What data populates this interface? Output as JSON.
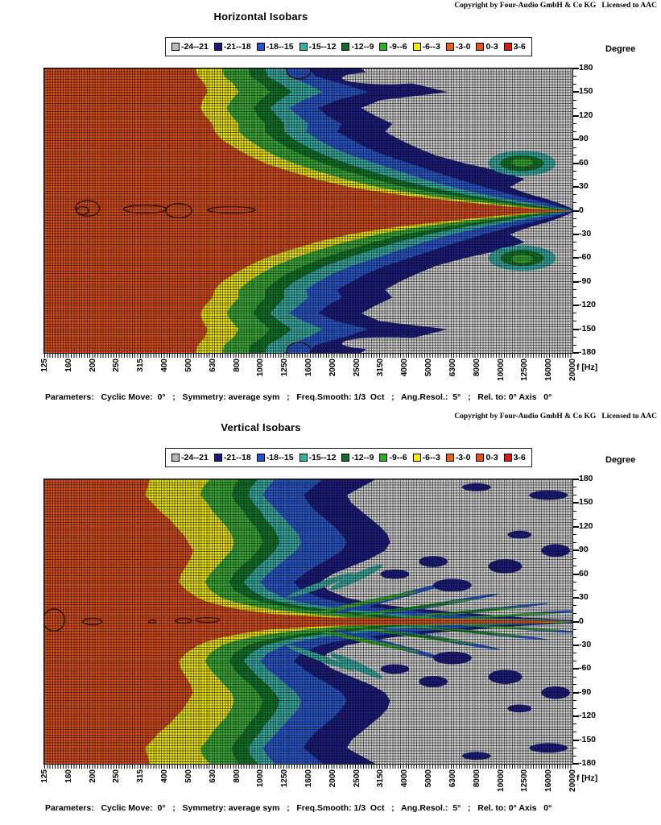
{
  "page_bg": "#ffffff",
  "charts": [
    {
      "copyright": "Copyright by Four-Audio GmbH & Co KG   Licensed to AAC",
      "title": "Horizontal Isobars",
      "degree_label": "Degree",
      "freq_label": "f [Hz]",
      "parameters": "Parameters:   Cyclic Move:  0°   ;   Symmetry: average sym   ;   Freq.Smooth: 1/3  Oct   ;   Ang.Resol.:  5°   ;   Rel. to: 0° Axis   0°"
    },
    {
      "copyright": "Copyright by Four-Audio GmbH & Co KG   Licensed to AAC",
      "title": "Vertical Isobars",
      "degree_label": "Degree",
      "freq_label": "f [Hz]",
      "parameters": "Parameters:   Cyclic Move:  0°   ;   Symmetry: average sym   ;   Freq.Smooth: 1/3  Oct   ;   Ang.Resol.:  5°   ;   Rel. to: 0° Axis   0°"
    }
  ],
  "legend": {
    "entries": [
      {
        "label": "-24--21",
        "color": "#b9b9b9"
      },
      {
        "label": "-21--18",
        "color": "#1a1a78"
      },
      {
        "label": "-18--15",
        "color": "#2255cc"
      },
      {
        "label": "-15--12",
        "color": "#32b3a6"
      },
      {
        "label": "-12--9",
        "color": "#0e6e26"
      },
      {
        "label": "-9--6",
        "color": "#2fae2a"
      },
      {
        "label": "-6--3",
        "color": "#f5ef00"
      },
      {
        "label": "-3-0",
        "color": "#e66312"
      },
      {
        "label": "0-3",
        "color": "#e0501a"
      },
      {
        "label": "3-6",
        "color": "#d91c12"
      }
    ]
  },
  "chart_colors": {
    "gray": "#d2d2d2",
    "navy": "#1d1d86",
    "blue": "#2a5ad2",
    "teal": "#38b2a8",
    "dkgreen": "#0f7a2b",
    "green": "#3cb037",
    "yellow": "#f2ea10",
    "red": "#dd4f1b"
  },
  "chart_data": [
    {
      "type": "heatmap",
      "title": "Horizontal Isobars",
      "x_ticks": [
        "125",
        "160",
        "200",
        "250",
        "315",
        "400",
        "500",
        "630",
        "800",
        "1000",
        "1250",
        "1600",
        "2000",
        "2500",
        "3150",
        "4000",
        "5000",
        "6300",
        "8000",
        "10000",
        "12500",
        "16000",
        "20000"
      ],
      "x_unit": "f [Hz]",
      "y_ticks": [
        "180",
        "150",
        "120",
        "90",
        "60",
        "30",
        "0",
        "-30",
        "-60",
        "-90",
        "-120",
        "-150",
        "-180"
      ],
      "y_unit": "Degree",
      "levels_db": [
        "-24--21",
        "-21--18",
        "-18--15",
        "-15--12",
        "-12--9",
        "-9--6",
        "-6--3",
        "-3-0",
        "0-3",
        "3-6"
      ],
      "grid": true,
      "legend_position": "top",
      "background": "gray",
      "angles": [
        180,
        170,
        160,
        150,
        140,
        130,
        120,
        110,
        100,
        90,
        80,
        70,
        60,
        50,
        40,
        30,
        25,
        20,
        15,
        10,
        5,
        2,
        0
      ],
      "bands": [
        {
          "color": "navy",
          "boundary_idx": [
            13.2,
            13.6,
            15.5,
            16.8,
            14.0,
            13.2,
            13.8,
            14.5,
            14.2,
            14.8,
            15.5,
            16.3,
            17.5,
            19.0,
            20.0,
            19.4,
            19.8,
            20.3,
            20.9,
            21.4,
            21.8,
            22,
            22
          ]
        },
        {
          "color": "blue",
          "boundary_idx": [
            11.0,
            11.3,
            12.5,
            13.5,
            12.2,
            11.4,
            11.8,
            12.4,
            12.2,
            12.8,
            13.4,
            14.2,
            15.2,
            16.2,
            17.2,
            18.3,
            18.9,
            19.5,
            20.2,
            20.9,
            21.5,
            21.9,
            22
          ]
        },
        {
          "color": "teal",
          "boundary_idx": [
            10.0,
            10.2,
            11.0,
            11.6,
            10.8,
            10.2,
            10.6,
            11.0,
            10.9,
            11.4,
            12.0,
            12.8,
            13.8,
            14.8,
            15.8,
            17.0,
            17.7,
            18.4,
            19.3,
            20.2,
            21.1,
            21.7,
            22
          ]
        },
        {
          "color": "dkgreen",
          "boundary_idx": [
            9.2,
            9.3,
            9.9,
            10.3,
            9.8,
            9.4,
            9.7,
            10.0,
            10.0,
            10.4,
            11.0,
            11.7,
            12.6,
            13.6,
            14.7,
            16.0,
            16.8,
            17.6,
            18.6,
            19.7,
            20.8,
            21.5,
            22
          ]
        },
        {
          "color": "green",
          "boundary_idx": [
            8.5,
            8.6,
            9.1,
            9.4,
            9.0,
            8.7,
            8.9,
            9.2,
            9.2,
            9.6,
            10.1,
            10.8,
            11.6,
            12.6,
            13.7,
            15.0,
            15.9,
            16.8,
            17.9,
            19.1,
            20.4,
            21.2,
            22
          ]
        },
        {
          "color": "yellow",
          "boundary_idx": [
            7.4,
            7.5,
            7.9,
            8.1,
            7.8,
            7.6,
            7.8,
            8.1,
            8.1,
            8.5,
            9.0,
            9.6,
            10.4,
            11.4,
            12.5,
            13.9,
            14.8,
            15.8,
            17.0,
            18.4,
            19.9,
            20.9,
            22
          ]
        },
        {
          "color": "red",
          "boundary_idx": [
            6.3,
            6.4,
            6.7,
            6.8,
            6.6,
            6.5,
            6.7,
            7.0,
            7.1,
            7.4,
            7.9,
            8.5,
            9.2,
            10.2,
            11.3,
            12.7,
            13.7,
            14.8,
            16.2,
            17.8,
            19.4,
            20.6,
            22
          ]
        }
      ],
      "islands": [
        {
          "color": "gray",
          "cx": 14.3,
          "cy": 168,
          "rx": 1.9,
          "ry": 8,
          "rot": 0,
          "mirror": true
        },
        {
          "color": "gray",
          "cx": 17.4,
          "cy": 96,
          "rx": 0.7,
          "ry": 7,
          "rot": 0,
          "mirror": true
        },
        {
          "color": "teal",
          "cx": 19.9,
          "cy": 60,
          "rx": 1.4,
          "ry": 16,
          "rot": 0,
          "mirror": true
        },
        {
          "color": "dkgreen",
          "cx": 19.9,
          "cy": 60,
          "rx": 0.9,
          "ry": 10,
          "rot": 0,
          "mirror": true
        },
        {
          "color": "green",
          "cx": 19.9,
          "cy": 61,
          "rx": 0.45,
          "ry": 5,
          "rot": 0,
          "mirror": true
        }
      ],
      "outlines": [
        {
          "cx": 1.8,
          "cy": 3,
          "rx": 0.5,
          "ry": 10,
          "mirror": false
        },
        {
          "cx": 1.6,
          "cy": 0,
          "rx": 0.25,
          "ry": 5,
          "mirror": false
        },
        {
          "cx": 4.2,
          "cy": 2,
          "rx": 0.9,
          "ry": 5,
          "mirror": false
        },
        {
          "cx": 5.6,
          "cy": 0,
          "rx": 0.55,
          "ry": 9,
          "mirror": false
        },
        {
          "cx": 7.8,
          "cy": 1,
          "rx": 1.0,
          "ry": 4,
          "mirror": false
        },
        {
          "cx": 10.6,
          "cy": 177,
          "rx": 0.5,
          "ry": 10,
          "mirror": true
        }
      ]
    },
    {
      "type": "heatmap",
      "title": "Vertical Isobars",
      "x_ticks": [
        "125",
        "160",
        "200",
        "250",
        "315",
        "400",
        "500",
        "630",
        "800",
        "1000",
        "1250",
        "1600",
        "2000",
        "2500",
        "3150",
        "4000",
        "5000",
        "6300",
        "8000",
        "10000",
        "12500",
        "16000",
        "20000"
      ],
      "x_unit": "f [Hz]",
      "y_ticks": [
        "180",
        "150",
        "120",
        "90",
        "60",
        "30",
        "0",
        "-30",
        "-60",
        "-90",
        "-120",
        "-150",
        "-180"
      ],
      "y_unit": "Degree",
      "levels_db": [
        "-24--21",
        "-21--18",
        "-18--15",
        "-15--12",
        "-12--9",
        "-9--6",
        "-6--3",
        "-3-0",
        "0-3",
        "3-6"
      ],
      "grid": true,
      "legend_position": "top",
      "background": "gray",
      "angles": [
        180,
        170,
        160,
        150,
        140,
        130,
        120,
        110,
        100,
        90,
        80,
        70,
        60,
        50,
        40,
        30,
        25,
        20,
        15,
        10,
        5,
        2,
        0
      ],
      "bands": [
        {
          "color": "navy",
          "boundary_idx": [
            13.8,
            13.2,
            12.6,
            12.8,
            13.2,
            13.6,
            14.0,
            14.3,
            14.4,
            14.2,
            13.6,
            12.8,
            12.0,
            11.5,
            11.8,
            12.6,
            13.4,
            14.5,
            16.0,
            18.0,
            20.0,
            22,
            22
          ]
        },
        {
          "color": "blue",
          "boundary_idx": [
            11.6,
            11.2,
            10.8,
            11.0,
            11.3,
            11.7,
            12.1,
            12.4,
            12.6,
            12.4,
            11.9,
            11.3,
            10.8,
            10.4,
            10.7,
            11.5,
            12.2,
            13.2,
            14.6,
            16.6,
            18.5,
            21.8,
            22
          ]
        },
        {
          "color": "teal",
          "boundary_idx": [
            9.6,
            9.3,
            9.1,
            9.4,
            9.7,
            10.0,
            10.3,
            10.6,
            10.7,
            10.5,
            10.1,
            9.7,
            9.3,
            9.0,
            9.3,
            10.0,
            10.6,
            11.5,
            12.8,
            14.6,
            16.5,
            21.5,
            22
          ]
        },
        {
          "color": "dkgreen",
          "boundary_idx": [
            8.9,
            8.6,
            8.5,
            8.7,
            9.0,
            9.2,
            9.5,
            9.7,
            9.8,
            9.6,
            9.3,
            8.9,
            8.6,
            8.3,
            8.6,
            9.2,
            9.8,
            10.6,
            11.8,
            13.5,
            15.0,
            21.2,
            22
          ]
        },
        {
          "color": "green",
          "boundary_idx": [
            8.1,
            7.9,
            7.8,
            8.0,
            8.3,
            8.5,
            8.8,
            9.0,
            9.1,
            8.9,
            8.6,
            8.2,
            7.9,
            7.7,
            7.9,
            8.5,
            9.0,
            9.8,
            10.9,
            12.5,
            14.0,
            21.0,
            22
          ]
        },
        {
          "color": "yellow",
          "boundary_idx": [
            6.9,
            6.6,
            6.5,
            6.8,
            7.0,
            7.3,
            7.6,
            7.8,
            7.9,
            7.8,
            7.5,
            7.2,
            6.9,
            6.7,
            6.9,
            7.4,
            7.9,
            8.6,
            9.6,
            11.0,
            12.8,
            20.5,
            22
          ]
        },
        {
          "color": "red",
          "boundary_idx": [
            4.4,
            4.3,
            4.2,
            4.5,
            4.8,
            5.2,
            5.5,
            5.8,
            6.0,
            6.2,
            6.1,
            5.9,
            5.7,
            5.6,
            5.9,
            6.4,
            6.8,
            7.4,
            8.2,
            9.4,
            12.0,
            20.0,
            22
          ]
        }
      ],
      "islands": [
        {
          "color": "gray",
          "cx": 15.2,
          "cy": 130,
          "rx": 0.6,
          "ry": 9,
          "rot": 0,
          "mirror": true
        },
        {
          "color": "gray",
          "cx": 16.5,
          "cy": 141,
          "rx": 0.8,
          "ry": 10,
          "rot": 0,
          "mirror": true
        },
        {
          "color": "gray",
          "cx": 17.8,
          "cy": 152,
          "rx": 0.7,
          "ry": 8,
          "rot": 0,
          "mirror": true
        },
        {
          "color": "gray",
          "cx": 16.1,
          "cy": 114,
          "rx": 0.5,
          "ry": 6,
          "rot": 0,
          "mirror": true
        },
        {
          "color": "gray",
          "cx": 18.4,
          "cy": 126,
          "rx": 0.9,
          "ry": 7,
          "rot": 0,
          "mirror": true
        },
        {
          "color": "gray",
          "cx": 19.5,
          "cy": 141,
          "rx": 0.6,
          "ry": 6,
          "rot": 0,
          "mirror": true
        },
        {
          "color": "blue",
          "cx": 14.5,
          "cy": 30,
          "rx": 2.5,
          "ry": 3,
          "rot": -15,
          "mirror": true
        },
        {
          "color": "blue",
          "cx": 16.5,
          "cy": 22,
          "rx": 2.5,
          "ry": 2.5,
          "rot": -10,
          "mirror": true
        },
        {
          "color": "blue",
          "cx": 18.5,
          "cy": 15,
          "rx": 2.5,
          "ry": 2,
          "rot": -6,
          "mirror": true
        },
        {
          "color": "blue",
          "cx": 20.5,
          "cy": 10,
          "rx": 1.8,
          "ry": 1.8,
          "rot": -4,
          "mirror": true
        },
        {
          "color": "teal",
          "cx": 11.5,
          "cy": 46,
          "rx": 1.5,
          "ry": 4,
          "rot": -20,
          "mirror": true
        },
        {
          "color": "teal",
          "cx": 13.0,
          "cy": 56,
          "rx": 1.2,
          "ry": 5,
          "rot": -25,
          "mirror": true
        },
        {
          "color": "green",
          "cx": 13.5,
          "cy": 25,
          "rx": 2.2,
          "ry": 2.5,
          "rot": -12,
          "mirror": true
        },
        {
          "color": "green",
          "cx": 15.5,
          "cy": 18,
          "rx": 2.5,
          "ry": 2,
          "rot": -8,
          "mirror": true
        },
        {
          "color": "green",
          "cx": 17.5,
          "cy": 12,
          "rx": 2.5,
          "ry": 1.8,
          "rot": -5,
          "mirror": true
        },
        {
          "color": "green",
          "cx": 19.5,
          "cy": 8,
          "rx": 2.0,
          "ry": 1.5,
          "rot": -3,
          "mirror": true
        },
        {
          "color": "dkgreen",
          "cx": 15.5,
          "cy": 18,
          "rx": 1.4,
          "ry": 1.1,
          "rot": -8,
          "mirror": true
        },
        {
          "color": "dkgreen",
          "cx": 17.5,
          "cy": 12,
          "rx": 1.4,
          "ry": 1.0,
          "rot": -5,
          "mirror": true
        },
        {
          "color": "navy",
          "cx": 17.0,
          "cy": 46,
          "rx": 0.8,
          "ry": 8,
          "rot": 0,
          "mirror": true
        },
        {
          "color": "navy",
          "cx": 19.2,
          "cy": 70,
          "rx": 0.7,
          "ry": 9,
          "rot": 0,
          "mirror": true
        },
        {
          "color": "navy",
          "cx": 16.2,
          "cy": 76,
          "rx": 0.6,
          "ry": 7,
          "rot": 0,
          "mirror": true
        },
        {
          "color": "navy",
          "cx": 21.3,
          "cy": 90,
          "rx": 0.6,
          "ry": 8,
          "rot": 0,
          "mirror": true
        },
        {
          "color": "navy",
          "cx": 19.8,
          "cy": 110,
          "rx": 0.5,
          "ry": 5,
          "rot": 0,
          "mirror": true
        },
        {
          "color": "navy",
          "cx": 21.0,
          "cy": 160,
          "rx": 0.8,
          "ry": 6,
          "rot": 0,
          "mirror": true
        },
        {
          "color": "navy",
          "cx": 18.0,
          "cy": 170,
          "rx": 0.6,
          "ry": 5,
          "rot": 0,
          "mirror": true
        },
        {
          "color": "navy",
          "cx": 14.6,
          "cy": 60,
          "rx": 0.6,
          "ry": 6,
          "rot": 0,
          "mirror": true
        }
      ],
      "outlines": [
        {
          "cx": 0.4,
          "cy": 2,
          "rx": 0.45,
          "ry": 14,
          "mirror": false
        },
        {
          "cx": 2.0,
          "cy": 0,
          "rx": 0.4,
          "ry": 4,
          "mirror": false
        },
        {
          "cx": 4.5,
          "cy": 0,
          "rx": 0.15,
          "ry": 2,
          "mirror": false
        },
        {
          "cx": 5.8,
          "cy": 1,
          "rx": 0.35,
          "ry": 3,
          "mirror": false
        },
        {
          "cx": 6.8,
          "cy": 2,
          "rx": 0.5,
          "ry": 3,
          "mirror": false
        }
      ]
    }
  ]
}
